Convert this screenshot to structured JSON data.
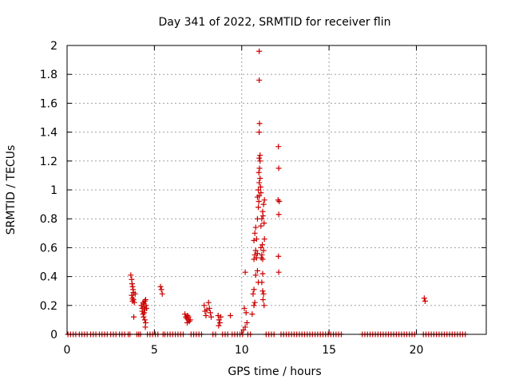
{
  "chart_data": {
    "type": "scatter",
    "title": "Day 341 of 2022, SRMTID for receiver flin",
    "xlabel": "GPS time / hours",
    "ylabel": "SRMTID / TECUs",
    "xlim": [
      0,
      24
    ],
    "ylim": [
      0,
      2
    ],
    "xticks": [
      0,
      5,
      10,
      15,
      20
    ],
    "xtick_labels": [
      "0",
      "5",
      "10",
      "15",
      "20"
    ],
    "yticks": [
      0,
      0.2,
      0.4,
      0.6,
      0.8,
      1,
      1.2,
      1.4,
      1.6,
      1.8,
      2
    ],
    "ytick_labels": [
      "0",
      "0.2",
      "0.4",
      "0.6",
      "0.8",
      "1",
      "1.2",
      "1.4",
      "1.6",
      "1.8",
      "2"
    ],
    "grid": true,
    "marker": "+",
    "color": "#cc0000",
    "series": [
      {
        "name": "SRMTID",
        "points": [
          [
            0.05,
            0
          ],
          [
            0.2,
            0
          ],
          [
            0.35,
            0
          ],
          [
            0.5,
            0
          ],
          [
            0.7,
            0
          ],
          [
            0.85,
            0
          ],
          [
            1.0,
            0
          ],
          [
            1.15,
            0
          ],
          [
            1.35,
            0
          ],
          [
            1.5,
            0
          ],
          [
            1.65,
            0
          ],
          [
            1.85,
            0
          ],
          [
            2.0,
            0
          ],
          [
            2.15,
            0
          ],
          [
            2.3,
            0
          ],
          [
            2.5,
            0
          ],
          [
            2.65,
            0
          ],
          [
            2.8,
            0
          ],
          [
            3.0,
            0
          ],
          [
            3.15,
            0
          ],
          [
            3.3,
            0
          ],
          [
            3.5,
            0
          ],
          [
            3.6,
            0
          ],
          [
            3.65,
            0.41
          ],
          [
            3.7,
            0.38
          ],
          [
            3.72,
            0.35
          ],
          [
            3.75,
            0.33
          ],
          [
            3.78,
            0.31
          ],
          [
            3.8,
            0.29
          ],
          [
            3.7,
            0.27
          ],
          [
            3.75,
            0.25
          ],
          [
            3.8,
            0.24
          ],
          [
            3.85,
            0.22
          ],
          [
            3.75,
            0.23
          ],
          [
            3.82,
            0.12
          ],
          [
            3.9,
            0.28
          ],
          [
            4.0,
            0
          ],
          [
            4.1,
            0
          ],
          [
            4.2,
            0
          ],
          [
            4.25,
            0.2
          ],
          [
            4.3,
            0.18
          ],
          [
            4.35,
            0.22
          ],
          [
            4.4,
            0.19
          ],
          [
            4.45,
            0.17
          ],
          [
            4.3,
            0.16
          ],
          [
            4.35,
            0.14
          ],
          [
            4.4,
            0.21
          ],
          [
            4.45,
            0.23
          ],
          [
            4.5,
            0.24
          ],
          [
            4.42,
            0.15
          ],
          [
            4.38,
            0.12
          ],
          [
            4.45,
            0.1
          ],
          [
            4.5,
            0.08
          ],
          [
            4.48,
            0.05
          ],
          [
            4.55,
            0.18
          ],
          [
            4.52,
            0.2
          ],
          [
            4.6,
            0
          ],
          [
            4.75,
            0
          ],
          [
            4.9,
            0
          ],
          [
            5.05,
            0
          ],
          [
            5.2,
            0
          ],
          [
            5.35,
            0.33
          ],
          [
            5.4,
            0.31
          ],
          [
            5.45,
            0.28
          ],
          [
            5.5,
            0
          ],
          [
            5.6,
            0
          ],
          [
            5.75,
            0
          ],
          [
            5.9,
            0
          ],
          [
            6.05,
            0
          ],
          [
            6.2,
            0
          ],
          [
            6.35,
            0
          ],
          [
            6.5,
            0
          ],
          [
            6.65,
            0
          ],
          [
            6.75,
            0.14
          ],
          [
            6.8,
            0.12
          ],
          [
            6.85,
            0.11
          ],
          [
            6.9,
            0.13
          ],
          [
            6.95,
            0.1
          ],
          [
            7.0,
            0.09
          ],
          [
            6.88,
            0.08
          ],
          [
            6.95,
            0.12
          ],
          [
            7.05,
            0.1
          ],
          [
            7.1,
            0
          ],
          [
            7.25,
            0
          ],
          [
            7.4,
            0
          ],
          [
            7.55,
            0
          ],
          [
            7.7,
            0
          ],
          [
            7.85,
            0.2
          ],
          [
            7.9,
            0.16
          ],
          [
            7.95,
            0.13
          ],
          [
            8.1,
            0.22
          ],
          [
            8.15,
            0.18
          ],
          [
            8.2,
            0.15
          ],
          [
            8.25,
            0.12
          ],
          [
            8.0,
            0.17
          ],
          [
            8.35,
            0
          ],
          [
            8.5,
            0
          ],
          [
            8.65,
            0.13
          ],
          [
            8.7,
            0.1
          ],
          [
            8.75,
            0.08
          ],
          [
            8.8,
            0.12
          ],
          [
            8.68,
            0.06
          ],
          [
            8.9,
            0
          ],
          [
            9.05,
            0
          ],
          [
            9.2,
            0
          ],
          [
            9.35,
            0.13
          ],
          [
            9.45,
            0
          ],
          [
            9.6,
            0
          ],
          [
            9.75,
            0
          ],
          [
            9.9,
            0
          ],
          [
            10.05,
            0
          ],
          [
            10.1,
            0.03
          ],
          [
            10.2,
            0.05
          ],
          [
            10.3,
            0.08
          ],
          [
            10.25,
            0.15
          ],
          [
            10.15,
            0.18
          ],
          [
            10.2,
            0.43
          ],
          [
            10.35,
            0
          ],
          [
            10.5,
            0
          ],
          [
            10.6,
            0.14
          ],
          [
            10.7,
            0.2
          ],
          [
            10.75,
            0.22
          ],
          [
            10.65,
            0.28
          ],
          [
            10.7,
            0.31
          ],
          [
            10.7,
            0.52
          ],
          [
            10.75,
            0.55
          ],
          [
            10.8,
            0.58
          ],
          [
            10.85,
            0.53
          ],
          [
            10.9,
            0.56
          ],
          [
            10.7,
            0.65
          ],
          [
            10.75,
            0.7
          ],
          [
            10.8,
            0.74
          ],
          [
            10.85,
            0.66
          ],
          [
            10.8,
            0.41
          ],
          [
            10.9,
            0.44
          ],
          [
            10.95,
            0.36
          ],
          [
            10.9,
            0.8
          ],
          [
            10.95,
            0.88
          ],
          [
            10.98,
            0.92
          ],
          [
            11.0,
            0.96
          ],
          [
            10.9,
            0.95
          ],
          [
            10.95,
            1.0
          ],
          [
            11.0,
            1.05
          ],
          [
            11.05,
            1.08
          ],
          [
            10.98,
            1.12
          ],
          [
            11.02,
            1.15
          ],
          [
            11.05,
            1.2
          ],
          [
            11.0,
            1.22
          ],
          [
            11.05,
            1.24
          ],
          [
            11.08,
            1.02
          ],
          [
            11.1,
            0.98
          ],
          [
            11.0,
            1.4
          ],
          [
            11.02,
            1.46
          ],
          [
            11.0,
            1.76
          ],
          [
            11.0,
            1.96
          ],
          [
            11.1,
            0.6
          ],
          [
            11.15,
            0.55
          ],
          [
            11.2,
            0.52
          ],
          [
            11.12,
            0.53
          ],
          [
            11.18,
            0.62
          ],
          [
            11.25,
            0.58
          ],
          [
            11.1,
            0.75
          ],
          [
            11.15,
            0.8
          ],
          [
            11.2,
            0.85
          ],
          [
            11.25,
            0.9
          ],
          [
            11.3,
            0.93
          ],
          [
            11.22,
            0.82
          ],
          [
            11.28,
            0.77
          ],
          [
            11.3,
            0.66
          ],
          [
            11.2,
            0.42
          ],
          [
            11.15,
            0.36
          ],
          [
            11.2,
            0.3
          ],
          [
            11.25,
            0.28
          ],
          [
            11.28,
            0.2
          ],
          [
            11.22,
            0.24
          ],
          [
            11.4,
            0
          ],
          [
            11.55,
            0
          ],
          [
            11.7,
            0
          ],
          [
            11.85,
            0
          ],
          [
            12.1,
            1.3
          ],
          [
            12.12,
            1.15
          ],
          [
            12.08,
            0.93
          ],
          [
            12.15,
            0.92
          ],
          [
            12.12,
            0.83
          ],
          [
            12.1,
            0.54
          ],
          [
            12.12,
            0.43
          ],
          [
            12.25,
            0
          ],
          [
            12.4,
            0
          ],
          [
            12.55,
            0
          ],
          [
            12.7,
            0
          ],
          [
            12.85,
            0
          ],
          [
            13.0,
            0
          ],
          [
            13.15,
            0
          ],
          [
            13.3,
            0
          ],
          [
            13.45,
            0
          ],
          [
            13.6,
            0
          ],
          [
            13.75,
            0
          ],
          [
            13.9,
            0
          ],
          [
            14.05,
            0
          ],
          [
            14.2,
            0
          ],
          [
            14.35,
            0
          ],
          [
            14.5,
            0
          ],
          [
            14.65,
            0
          ],
          [
            14.8,
            0
          ],
          [
            14.95,
            0
          ],
          [
            15.1,
            0
          ],
          [
            15.25,
            0
          ],
          [
            15.4,
            0
          ],
          [
            15.55,
            0
          ],
          [
            15.7,
            0
          ],
          [
            16.9,
            0
          ],
          [
            17.05,
            0
          ],
          [
            17.2,
            0
          ],
          [
            17.35,
            0
          ],
          [
            17.5,
            0
          ],
          [
            17.65,
            0
          ],
          [
            17.8,
            0
          ],
          [
            17.95,
            0
          ],
          [
            18.1,
            0
          ],
          [
            18.25,
            0
          ],
          [
            18.4,
            0
          ],
          [
            18.55,
            0
          ],
          [
            18.7,
            0
          ],
          [
            18.85,
            0
          ],
          [
            19.0,
            0
          ],
          [
            19.15,
            0
          ],
          [
            19.3,
            0
          ],
          [
            19.45,
            0
          ],
          [
            19.6,
            0
          ],
          [
            19.75,
            0
          ],
          [
            19.9,
            0
          ],
          [
            20.45,
            0.25
          ],
          [
            20.5,
            0.23
          ],
          [
            20.4,
            0
          ],
          [
            20.55,
            0
          ],
          [
            20.7,
            0
          ],
          [
            20.85,
            0
          ],
          [
            21.0,
            0
          ],
          [
            21.15,
            0
          ],
          [
            21.3,
            0
          ],
          [
            21.45,
            0
          ],
          [
            21.6,
            0
          ],
          [
            21.75,
            0
          ],
          [
            21.9,
            0
          ],
          [
            22.05,
            0
          ],
          [
            22.2,
            0
          ],
          [
            22.35,
            0
          ],
          [
            22.5,
            0
          ],
          [
            22.65,
            0
          ],
          [
            22.8,
            0
          ]
        ]
      }
    ]
  }
}
